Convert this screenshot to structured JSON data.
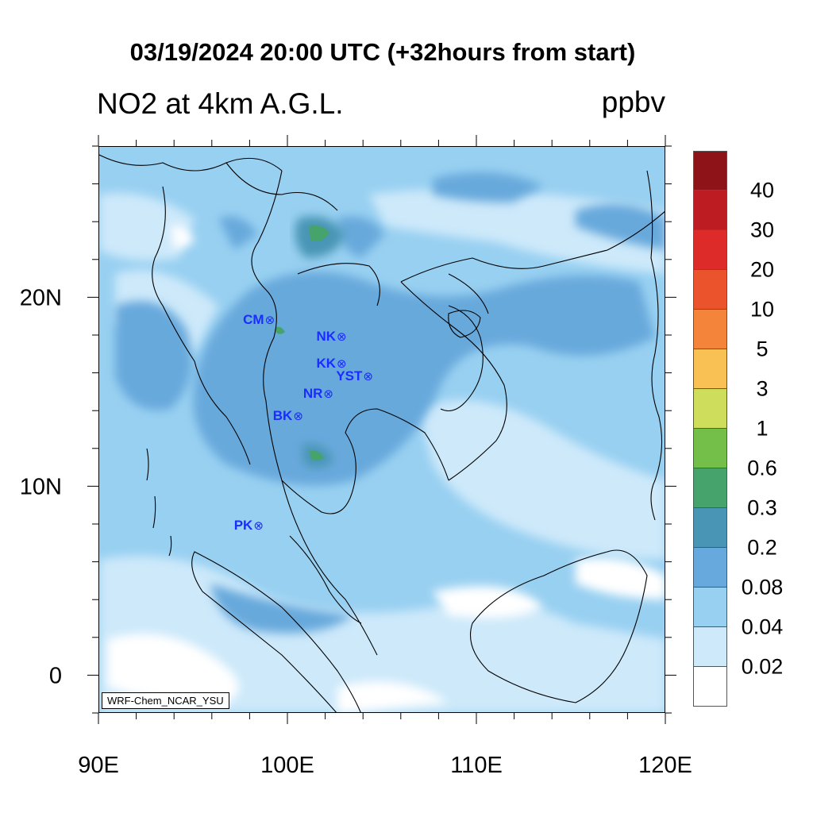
{
  "title": "03/19/2024 20:00 UTC (+32hours from start)",
  "subtitle": "NO2 at 4km A.G.L.",
  "units": "ppbv",
  "credit": "WRF-Chem_NCAR_YSU",
  "axes": {
    "x_labels": [
      "90E",
      "100E",
      "110E",
      "120E"
    ],
    "y_labels": [
      "20N",
      "10N",
      "0"
    ]
  },
  "colorbar": {
    "labels": [
      "40",
      "30",
      "20",
      "10",
      "5",
      "3",
      "1",
      "0.6",
      "0.3",
      "0.2",
      "0.08",
      "0.04",
      "0.02"
    ],
    "colors": [
      "#8e1318",
      "#bd1c22",
      "#dc2b29",
      "#ea532b",
      "#f3843a",
      "#f9c154",
      "#cfdd5c",
      "#74be4a",
      "#47a36c",
      "#4895b5",
      "#67a9dc",
      "#98d0f1",
      "#cde9fa",
      "#ffffff"
    ]
  },
  "stations": [
    {
      "label": "CM",
      "lon": 99.0,
      "lat": 18.8
    },
    {
      "label": "NK",
      "lon": 102.8,
      "lat": 17.9
    },
    {
      "label": "KK",
      "lon": 102.8,
      "lat": 16.5
    },
    {
      "label": "YST",
      "lon": 104.2,
      "lat": 15.8
    },
    {
      "label": "NR",
      "lon": 102.1,
      "lat": 14.9
    },
    {
      "label": "BK",
      "lon": 100.5,
      "lat": 13.7
    },
    {
      "label": "PK",
      "lon": 98.4,
      "lat": 7.9
    }
  ]
}
